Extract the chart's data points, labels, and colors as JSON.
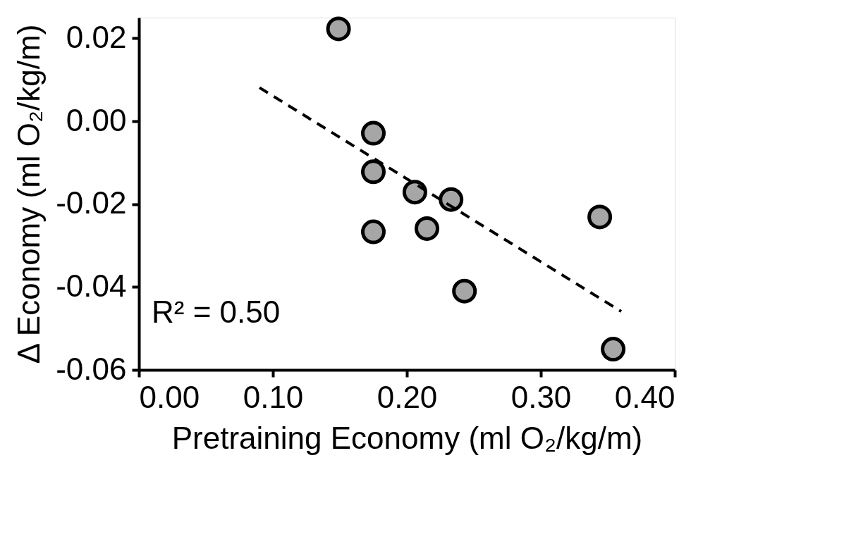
{
  "chart_data": {
    "type": "scatter",
    "xlabel": "Pretraining Economy (ml O₂/kg/m)",
    "ylabel": "Δ Economy (ml O₂/kg/m)",
    "series": [
      {
        "color": "#a6a6a6",
        "x": [
          0.149,
          0.175,
          0.175,
          0.206,
          0.233,
          0.175,
          0.215,
          0.243,
          0.344,
          0.354
        ],
        "values": [
          0.0223,
          -0.0029,
          -0.0122,
          -0.0171,
          -0.0189,
          -0.0267,
          -0.0259,
          -0.041,
          -0.0231,
          -0.055
        ]
      },
      {
        "type": "line",
        "color": "#000000",
        "line_style": "dashed",
        "marker": "none",
        "x": [
          0.09,
          0.36
        ],
        "values": [
          0.0081,
          -0.0459
        ]
      }
    ],
    "annotations": [
      "R² = 0.50"
    ],
    "marker": "circle",
    "xlim": [
      0,
      0.4
    ],
    "xticks": [
      {
        "value": 0,
        "label": "0.00"
      },
      {
        "value": 0.1,
        "label": "0.10"
      },
      {
        "value": 0.2,
        "label": "0.20"
      },
      {
        "value": 0.3,
        "label": "0.30"
      },
      {
        "value": 0.4,
        "label": "0.40"
      }
    ],
    "ylim": [
      -0.06,
      0.025
    ],
    "yticks": [
      {
        "value": -0.06,
        "label": "-0.06"
      },
      {
        "value": -0.04,
        "label": "-0.04"
      },
      {
        "value": -0.02,
        "label": "-0.02"
      },
      {
        "value": 0,
        "label": "0.00"
      },
      {
        "value": 0.02,
        "label": "0.02"
      }
    ],
    "grid": false
  }
}
